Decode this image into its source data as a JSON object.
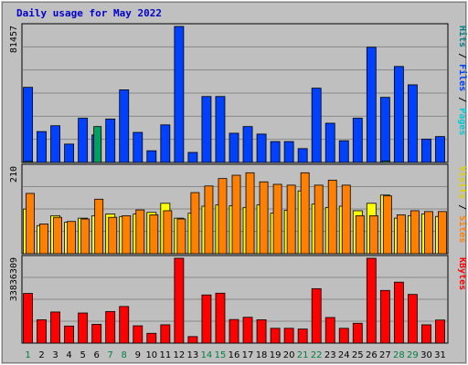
{
  "colors": {
    "background": "#c0c0c0",
    "plot_bg": "#bfbfbf",
    "grid": "#8a8a8a",
    "hits": "#0040ff",
    "files": "#00a060",
    "pages": "#00c8d8",
    "visits": "#ffff00",
    "sites": "#ff8000",
    "kbytes": "#ff0000",
    "title": "#0000cc",
    "weekend_label": "#008040"
  },
  "chart_data": {
    "type": "bar",
    "title": "Daily usage for May 2022",
    "categories": [
      "1",
      "2",
      "3",
      "4",
      "5",
      "6",
      "7",
      "8",
      "9",
      "10",
      "11",
      "12",
      "13",
      "14",
      "15",
      "16",
      "17",
      "18",
      "19",
      "20",
      "21",
      "22",
      "23",
      "24",
      "25",
      "26",
      "27",
      "28",
      "29",
      "30",
      "31"
    ],
    "weekend_days": [
      "1",
      "7",
      "8",
      "14",
      "15",
      "21",
      "22",
      "28",
      "29"
    ],
    "grid": true,
    "legend_placement": "right",
    "panels": [
      {
        "id": "hits",
        "ymax_label": "81457",
        "ylim": [
          0,
          81457
        ],
        "legend": [
          {
            "text": "Pages",
            "color": "#00c8d8"
          },
          {
            "text": "Files",
            "color": "#0040ff"
          },
          {
            "text": "Hits",
            "color": "#008080"
          }
        ],
        "series": [
          {
            "name": "Hits",
            "values": [
              45000,
              18500,
              22000,
              11000,
              26500,
              16500,
              26000,
              43500,
              18000,
              7000,
              22500,
              81457,
              6000,
              39500,
              39500,
              17500,
              21500,
              17000,
              12500,
              12500,
              8300,
              44500,
              23500,
              13000,
              26500,
              69000,
              39000,
              57500,
              46500,
              14000,
              15500
            ]
          },
          {
            "name": "Files",
            "values": [
              600,
              0,
              0,
              0,
              0,
              21500,
              0,
              0,
              0,
              0,
              0,
              0,
              0,
              0,
              0,
              0,
              0,
              0,
              0,
              0,
              0,
              0,
              0,
              0,
              0,
              0,
              800,
              0,
              0,
              0,
              0
            ]
          }
        ]
      },
      {
        "id": "visits",
        "ymax_label": "210",
        "ylim": [
          0,
          210
        ],
        "legend": [
          {
            "text": "Sites",
            "color": "#ff8000"
          },
          {
            "text": "Visits",
            "color": "#e0d000"
          }
        ],
        "series": [
          {
            "name": "Visits",
            "values": [
              108,
              68,
              92,
              76,
              86,
              92,
              96,
              90,
              96,
              100,
              122,
              86,
              98,
              115,
              118,
              116,
              112,
              118,
              98,
              105,
              152,
              120,
              112,
              115,
              104,
              122,
              142,
              86,
              92,
              96,
              90
            ]
          },
          {
            "name": "Sites",
            "values": [
              146,
              72,
              88,
              78,
              84,
              132,
              88,
              92,
              106,
              94,
              104,
              84,
              148,
              164,
              182,
              190,
              196,
              174,
              168,
              166,
              196,
              166,
              178,
              166,
              92,
              92,
              140,
              94,
              104,
              102,
              102
            ]
          }
        ]
      },
      {
        "id": "kbytes",
        "ymax_label": "33836309",
        "ylim": [
          0,
          33836309
        ],
        "legend": [
          {
            "text": "KBytes",
            "color": "#ff0000"
          }
        ],
        "series": [
          {
            "name": "KBytes",
            "values": [
              19800,
              9300,
              12400,
              6800,
              12000,
              7500,
              12600,
              14600,
              6900,
              3900,
              7300,
              33836,
              2600,
              19200,
              19900,
              9400,
              10300,
              9300,
              5900,
              5900,
              5600,
              21700,
              10200,
              5900,
              7900,
              33836,
              21000,
              24300,
              19400,
              7300,
              9200
            ]
          }
        ]
      }
    ]
  }
}
